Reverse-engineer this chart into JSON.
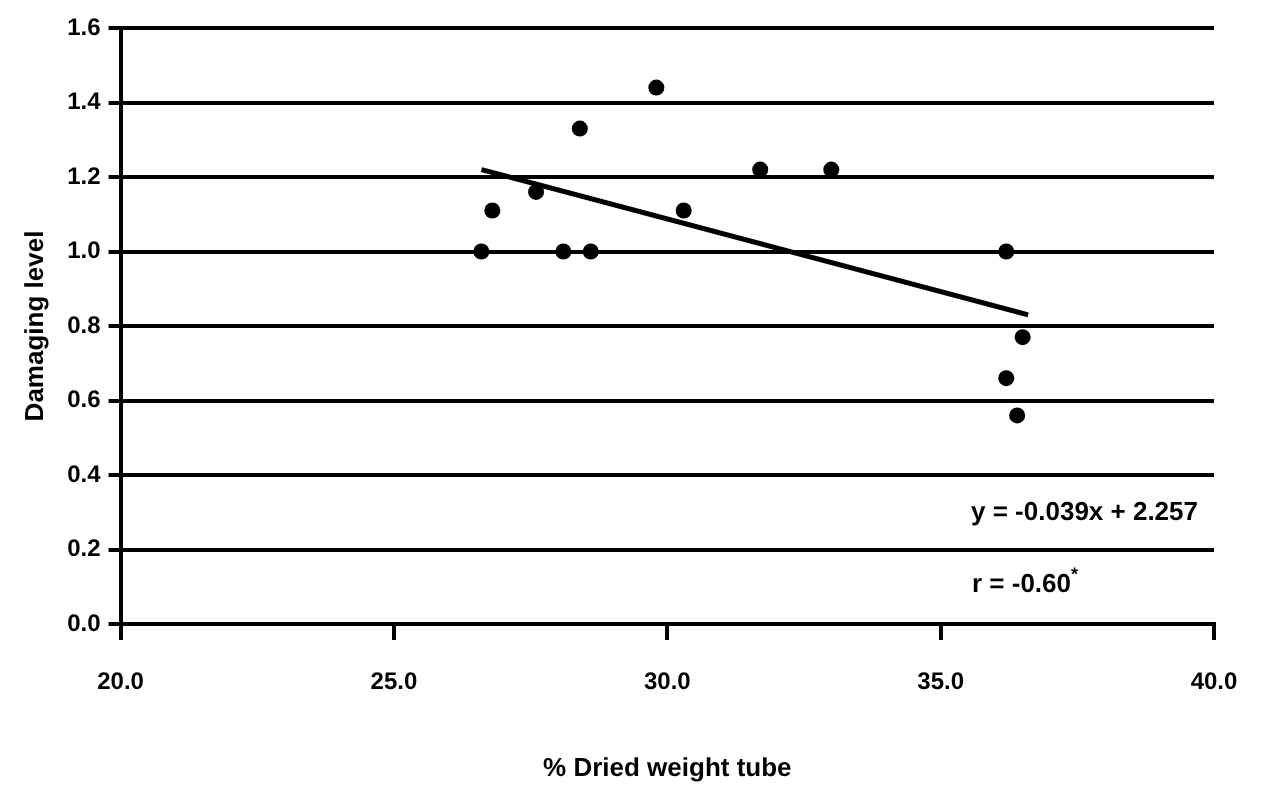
{
  "chart_data": {
    "type": "scatter",
    "xlabel": "% Dried weight tube",
    "ylabel": "Damaging level",
    "xlim": [
      20,
      40
    ],
    "xticks": [
      {
        "value": 20,
        "label": "20.0"
      },
      {
        "value": 25,
        "label": "25.0"
      },
      {
        "value": 30,
        "label": "30.0"
      },
      {
        "value": 35,
        "label": "35.0"
      },
      {
        "value": 40,
        "label": "40.0"
      }
    ],
    "ylim": [
      0,
      1.6
    ],
    "yticks": [
      {
        "value": 0,
        "label": "0.0"
      },
      {
        "value": 0.2,
        "label": "0.2"
      },
      {
        "value": 0.4,
        "label": "0.4"
      },
      {
        "value": 0.6,
        "label": "0.6"
      },
      {
        "value": 0.8,
        "label": "0.8"
      },
      {
        "value": 1,
        "label": "1.0"
      },
      {
        "value": 1.2,
        "label": "1.2"
      },
      {
        "value": 1.4,
        "label": "1.4"
      },
      {
        "value": 1.6,
        "label": "1.6"
      }
    ],
    "grid": "y",
    "legend": false,
    "marker": "circle",
    "series": [
      {
        "color": "#000000",
        "x": [
          26.6,
          26.8,
          27.6,
          28.1,
          28.4,
          28.6,
          29.8,
          30.3,
          31.7,
          33.0,
          36.2,
          36.5,
          36.2,
          36.4
        ],
        "values": [
          1.0,
          1.11,
          1.16,
          1.0,
          1.33,
          1.0,
          1.44,
          1.11,
          1.22,
          1.22,
          1.0,
          0.77,
          0.66,
          0.56
        ]
      },
      {
        "type": "line",
        "color": "#000000",
        "marker": "none",
        "line_style": "solid",
        "x": [
          26.6,
          36.6
        ],
        "values": [
          1.22,
          0.83
        ]
      }
    ],
    "annotations": [
      "y = -0.039x + 2.257",
      "r = -0.60$^{*}$"
    ]
  }
}
